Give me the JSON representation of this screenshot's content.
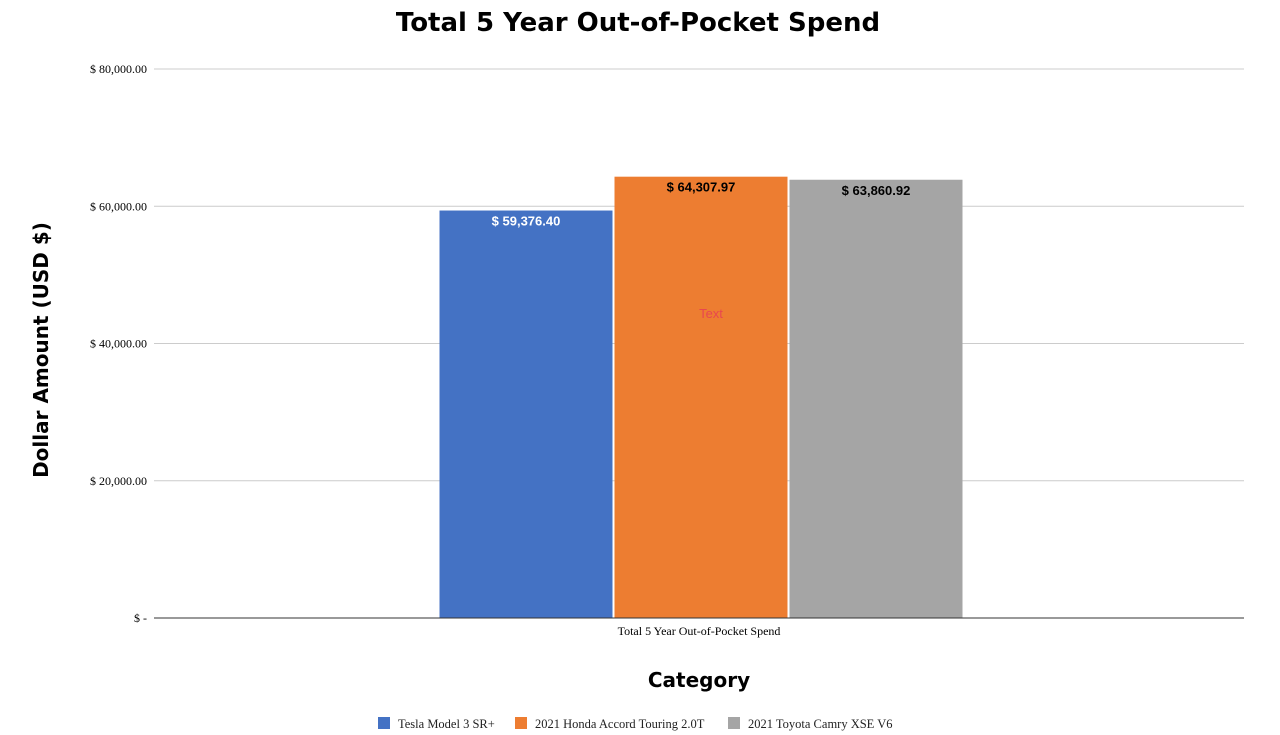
{
  "chart_data": {
    "type": "bar",
    "title": "Total 5 Year Out-of-Pocket Spend",
    "xlabel": "Category",
    "ylabel": "Dollar Amount (USD $)",
    "categories": [
      "Total 5 Year Out-of-Pocket Spend"
    ],
    "series": [
      {
        "name": "Tesla Model 3 SR+",
        "values": [
          59376.4
        ],
        "label": "$ 59,376.40",
        "color": "#4472c4",
        "label_color": "#ffffff"
      },
      {
        "name": "2021 Honda Accord Touring 2.0T",
        "values": [
          64307.97
        ],
        "label": "$ 64,307.97",
        "color": "#ed7d31",
        "label_color": "#000000"
      },
      {
        "name": "2021 Toyota Camry XSE V6",
        "values": [
          63860.92
        ],
        "label": "$ 63,860.92",
        "color": "#a5a5a5",
        "label_color": "#000000"
      }
    ],
    "ylim": [
      0,
      80000
    ],
    "yticks": [
      {
        "value": 0,
        "label": "$ -"
      },
      {
        "value": 20000,
        "label": "$ 20,000.00"
      },
      {
        "value": 40000,
        "label": "$ 40,000.00"
      },
      {
        "value": 60000,
        "label": "$ 60,000.00"
      },
      {
        "value": 80000,
        "label": "$ 80,000.00"
      }
    ],
    "grid": true,
    "legend_position": "bottom",
    "annotation": {
      "text": "Text",
      "color": "#e8474f"
    }
  }
}
